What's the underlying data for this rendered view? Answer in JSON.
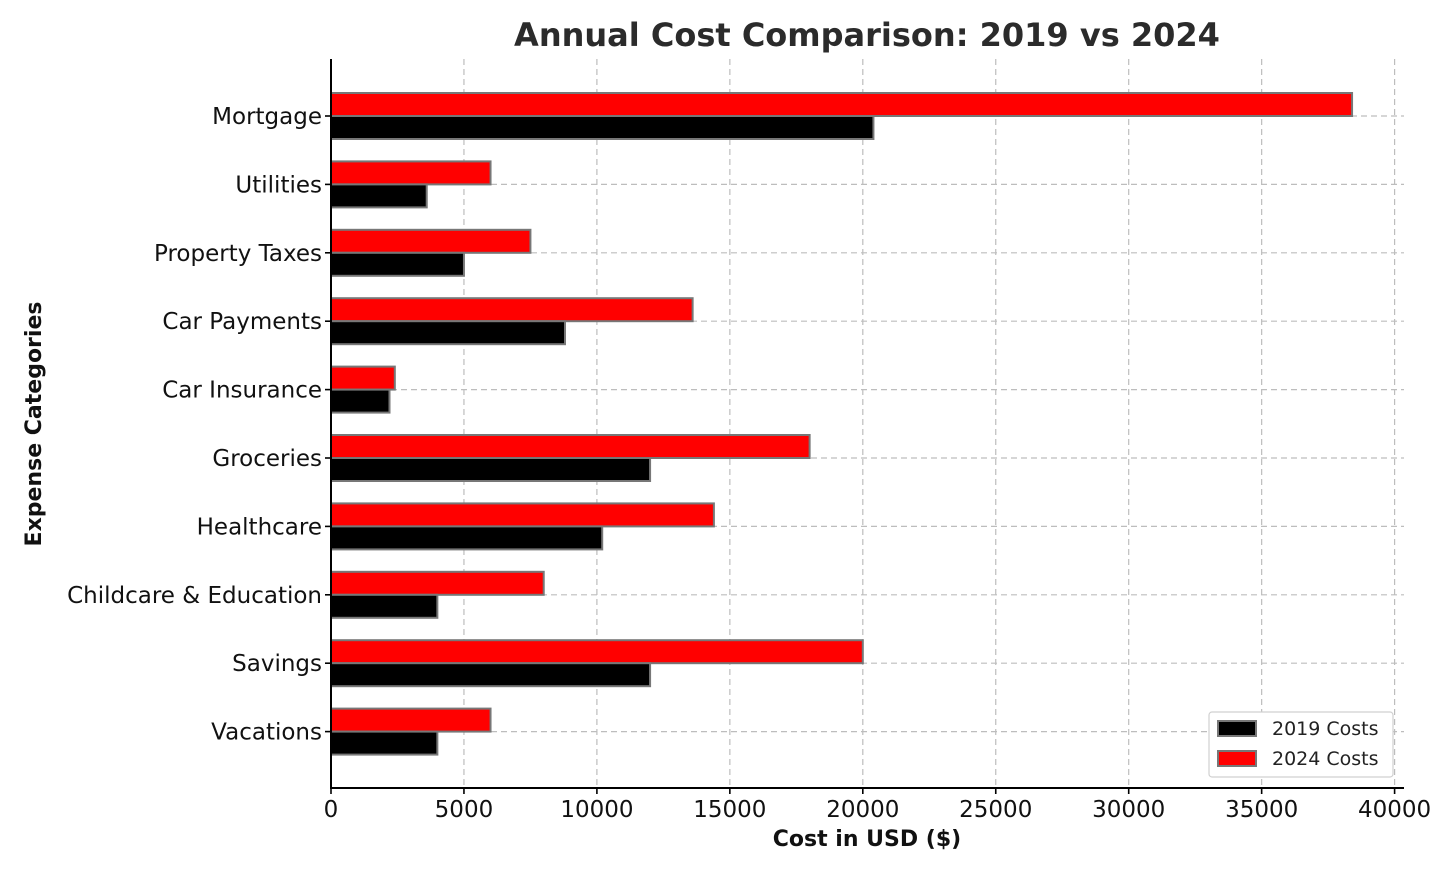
{
  "chart_data": {
    "type": "bar",
    "orientation": "horizontal",
    "title": "Annual Cost Comparison: 2019 vs 2024",
    "xlabel": "Cost in USD ($)",
    "ylabel": "Expense Categories",
    "xlim": [
      0,
      40000
    ],
    "xticks": [
      0,
      5000,
      10000,
      15000,
      20000,
      25000,
      30000,
      35000,
      40000
    ],
    "grid": true,
    "legend_position": "bottom-right",
    "categories": [
      "Mortgage",
      "Utilities",
      "Property Taxes",
      "Car Payments",
      "Car Insurance",
      "Groceries",
      "Healthcare",
      "Childcare & Education",
      "Savings",
      "Vacations"
    ],
    "series": [
      {
        "name": "2019 Costs",
        "color": "#000000",
        "values": [
          20400,
          3600,
          5000,
          8800,
          2200,
          12000,
          10200,
          4000,
          12000,
          4000
        ]
      },
      {
        "name": "2024 Costs",
        "color": "#ff0000",
        "values": [
          38400,
          6000,
          7500,
          13600,
          2400,
          18000,
          14400,
          8000,
          20000,
          6000
        ]
      }
    ]
  }
}
